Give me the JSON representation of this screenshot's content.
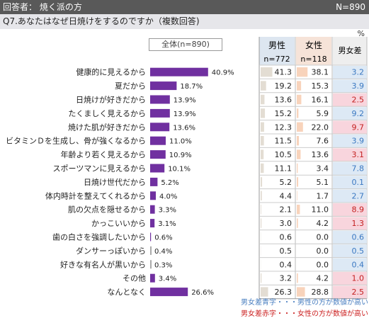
{
  "header": {
    "respondent_label": "回答者： 焼く派の方",
    "n_label": "N=890"
  },
  "question": "Q7.あなたはなぜ日焼けをするのですか（複数回答)",
  "unit_mark": "%",
  "table_headers": {
    "overall": "全体(n=890)",
    "male": "男性",
    "male_n": "n=772",
    "female": "女性",
    "female_n": "n=118",
    "diff": "男女差"
  },
  "colors": {
    "bar": "#7030a0",
    "male_bar": "#e3ddd3",
    "female_bar": "#f8d3bb",
    "male_higher_bg": "#dde9f5",
    "male_higher_text": "#3a78c2",
    "female_higher_bg": "#f8d5dd",
    "female_higher_text": "#c42020"
  },
  "chart_data": {
    "type": "bar",
    "orientation": "horizontal",
    "categories": [
      "健康的に見えるから",
      "夏だから",
      "日焼けが好きだから",
      "たくましく見えるから",
      "焼けた肌が好きだから",
      "ビタミンＤを生成し、骨が強くなるから",
      "年齢より若く見えるから",
      "スポーツマンに見えるから",
      "日焼け世代だから",
      "体内時計を整えてくれるから",
      "肌の欠点を隠せるから",
      "かっこいいから",
      "歯の白さを強調したいから",
      "ダンサーっぽいから",
      "好きな有名人が黒いから",
      "その他",
      "なんとなく"
    ],
    "values": [
      40.9,
      18.7,
      13.9,
      13.9,
      13.6,
      11.0,
      10.9,
      10.1,
      5.2,
      4.0,
      3.3,
      3.1,
      0.6,
      0.4,
      0.3,
      3.4,
      26.6
    ],
    "value_labels": [
      "40.9%",
      "18.7%",
      "13.9%",
      "13.9%",
      "13.6%",
      "11.0%",
      "10.9%",
      "10.1%",
      "5.2%",
      "4.0%",
      "3.3%",
      "3.1%",
      "0.6%",
      "0.4%",
      "0.3%",
      "3.4%",
      "26.6%"
    ],
    "male": [
      "41.3",
      "19.2",
      "13.6",
      "15.2",
      "12.3",
      "11.5",
      "10.5",
      "11.1",
      "5.2",
      "4.4",
      "2.1",
      "3.0",
      "0.6",
      "0.5",
      "0.4",
      "3.2",
      "26.3"
    ],
    "female": [
      "38.1",
      "15.3",
      "16.1",
      "5.9",
      "22.0",
      "7.6",
      "13.6",
      "3.4",
      "5.1",
      "1.7",
      "11.0",
      "4.2",
      "0.0",
      "0.0",
      "0.0",
      "4.2",
      "28.8"
    ],
    "diff": [
      "3.2",
      "3.9",
      "2.5",
      "9.2",
      "9.7",
      "3.9",
      "3.1",
      "7.8",
      "0.1",
      "2.7",
      "8.9",
      "1.3",
      "0.6",
      "0.5",
      "0.4",
      "1.0",
      "2.5"
    ],
    "diff_higher": [
      "male",
      "male",
      "female",
      "male",
      "female",
      "male",
      "female",
      "male",
      "male",
      "male",
      "female",
      "female",
      "male",
      "male",
      "male",
      "female",
      "female"
    ]
  },
  "legend": {
    "male_higher": "男女差青字・・・男性の方が数値が高い",
    "female_higher": "男女差赤字・・・女性の方が数値が高い"
  }
}
